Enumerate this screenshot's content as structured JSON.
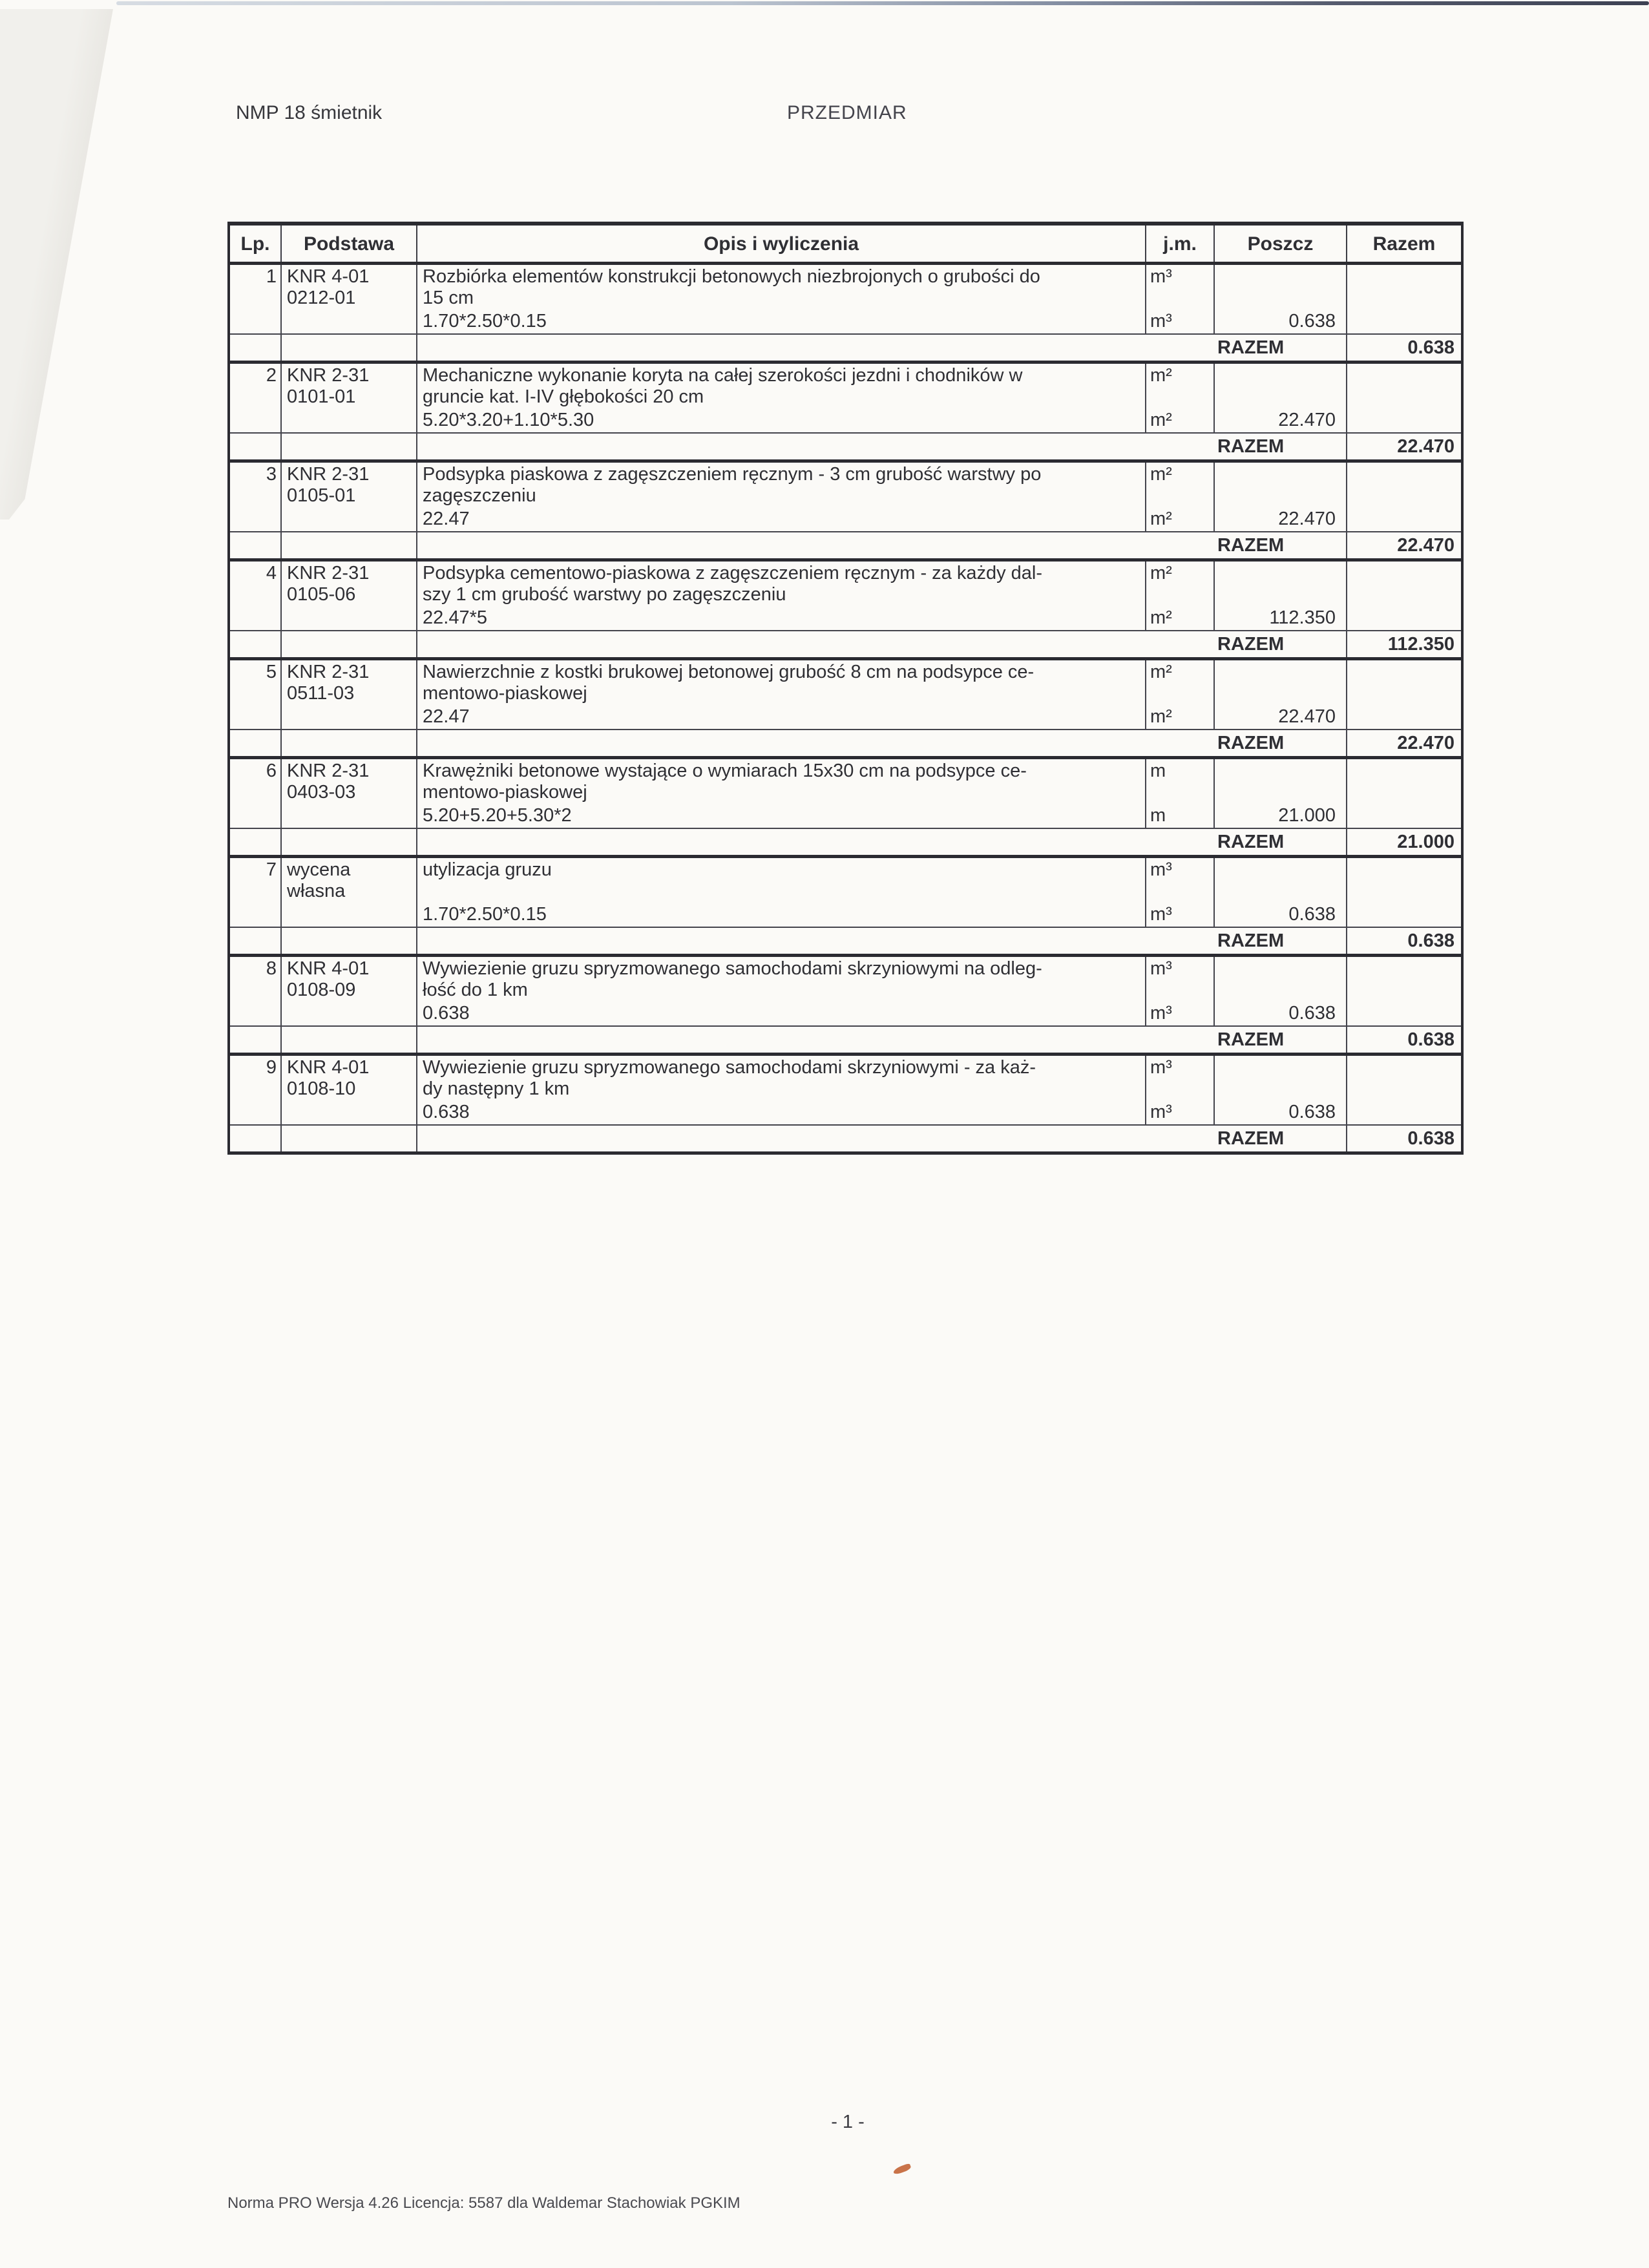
{
  "page": {
    "doc_title_left": "NMP 18 śmietnik",
    "doc_title_center": "PRZEDMIAR",
    "page_number": "- 1 -",
    "footer": "Norma PRO Wersja 4.26 Licencja: 5587 dla Waldemar Stachowiak PGKIM"
  },
  "table": {
    "headers": {
      "lp": "Lp.",
      "podstawa": "Podstawa",
      "opis": "Opis i wyliczenia",
      "jm": "j.m.",
      "poszcz": "Poszcz",
      "razem": "Razem"
    },
    "razem_label": "RAZEM",
    "items": [
      {
        "lp": "1",
        "basis": [
          "KNR 4-01",
          "0212-01"
        ],
        "desc": [
          "Rozbiórka elementów konstrukcji betonowych niezbrojonych o grubości do",
          "15 cm"
        ],
        "calc": "1.70*2.50*0.15",
        "unit": "m³",
        "poszcz": "0.638",
        "razem": "0.638"
      },
      {
        "lp": "2",
        "basis": [
          "KNR 2-31",
          "0101-01"
        ],
        "desc": [
          "Mechaniczne wykonanie koryta na całej szerokości jezdni i chodników w",
          "gruncie kat. I-IV głębokości 20 cm"
        ],
        "calc": "5.20*3.20+1.10*5.30",
        "unit": "m²",
        "poszcz": "22.470",
        "razem": "22.470"
      },
      {
        "lp": "3",
        "basis": [
          "KNR 2-31",
          "0105-01"
        ],
        "desc": [
          "Podsypka piaskowa z zagęszczeniem ręcznym - 3 cm grubość warstwy po",
          "zagęszczeniu"
        ],
        "calc": "22.47",
        "unit": "m²",
        "poszcz": "22.470",
        "razem": "22.470"
      },
      {
        "lp": "4",
        "basis": [
          "KNR 2-31",
          "0105-06"
        ],
        "desc": [
          "Podsypka cementowo-piaskowa z zagęszczeniem ręcznym - za każdy dal-",
          "szy 1 cm grubość warstwy po zagęszczeniu"
        ],
        "calc": "22.47*5",
        "unit": "m²",
        "poszcz": "112.350",
        "razem": "112.350"
      },
      {
        "lp": "5",
        "basis": [
          "KNR 2-31",
          "0511-03"
        ],
        "desc": [
          "Nawierzchnie z kostki brukowej betonowej grubość 8 cm na podsypce ce-",
          "mentowo-piaskowej"
        ],
        "calc": "22.47",
        "unit": "m²",
        "poszcz": "22.470",
        "razem": "22.470"
      },
      {
        "lp": "6",
        "basis": [
          "KNR 2-31",
          "0403-03"
        ],
        "desc": [
          "Krawężniki betonowe wystające o wymiarach 15x30 cm na podsypce ce-",
          "mentowo-piaskowej"
        ],
        "calc": "5.20+5.20+5.30*2",
        "unit": "m",
        "poszcz": "21.000",
        "razem": "21.000"
      },
      {
        "lp": "7",
        "basis": [
          "wycena",
          "własna"
        ],
        "desc": [
          "utylizacja gruzu"
        ],
        "calc": "1.70*2.50*0.15",
        "unit": "m³",
        "poszcz": "0.638",
        "razem": "0.638"
      },
      {
        "lp": "8",
        "basis": [
          "KNR 4-01",
          "0108-09"
        ],
        "desc": [
          "Wywiezienie gruzu spryzmowanego samochodami skrzyniowymi na odleg-",
          "łość do 1 km"
        ],
        "calc": "0.638",
        "unit": "m³",
        "poszcz": "0.638",
        "razem": "0.638"
      },
      {
        "lp": "9",
        "basis": [
          "KNR 4-01",
          "0108-10"
        ],
        "desc": [
          "Wywiezienie gruzu spryzmowanego samochodami skrzyniowymi - za każ-",
          "dy następny 1 km"
        ],
        "calc": "0.638",
        "unit": "m³",
        "poszcz": "0.638",
        "razem": "0.638"
      }
    ]
  }
}
